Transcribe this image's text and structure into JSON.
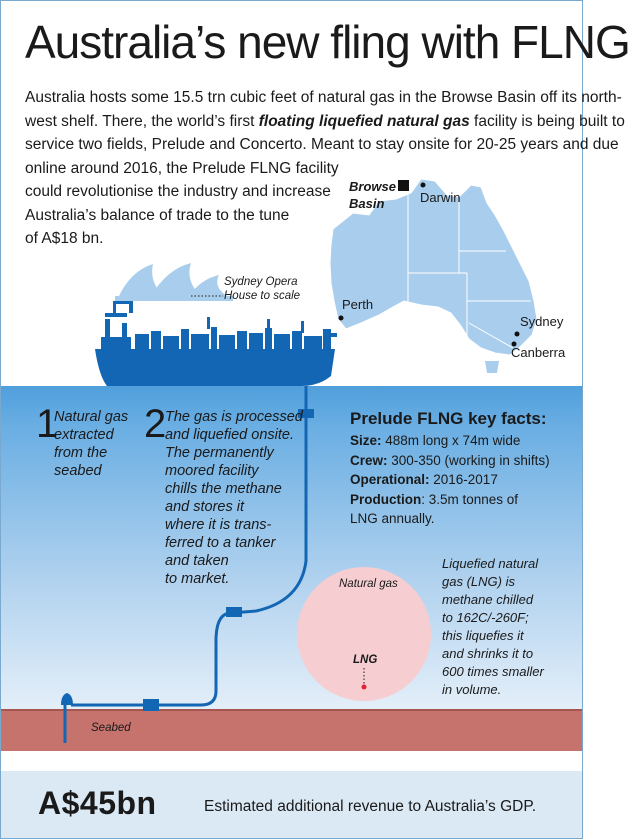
{
  "title": "Australia’s new fling with FLNG",
  "intro": {
    "line1": "Australia hosts some 15.5 trn cubic feet of natural gas in the Browse Basin off its north-",
    "line2_pre": "west shelf. There, the world’s first ",
    "line2_bold": "floating liquefied natural gas",
    "line2_post": " facility is being built to",
    "line3": "service two fields, Prelude and Concerto. Meant to stay onsite for 20-25 years and due",
    "line4": "online around 2016, the Prelude FLNG facility",
    "line5": "could revolutionise the industry and increase",
    "line6": "Australia’s balance of trade to the tune",
    "line7": "of A$18 bn."
  },
  "map": {
    "browse_basin": [
      "Browse",
      "Basin"
    ],
    "cities": {
      "darwin": "Darwin",
      "perth": "Perth",
      "sydney": "Sydney",
      "canberra": "Canberra"
    }
  },
  "opera_label": [
    "Sydney Opera",
    "House to scale"
  ],
  "steps": [
    {
      "number": "1",
      "lines": [
        "Natural gas",
        "extracted",
        "from the",
        "seabed"
      ]
    },
    {
      "number": "2",
      "lines": [
        "The gas is processed",
        "and liquefied onsite.",
        "The permanently",
        "moored facility",
        "chills the methane",
        "and stores it",
        "where it is trans-",
        "ferred to a tanker",
        "and taken",
        "to market."
      ]
    }
  ],
  "facts": {
    "title": "Prelude FLNG key facts:",
    "size_label": "Size:",
    "size_value": " 488m long x 74m wide",
    "crew_label": "Crew:",
    "crew_value": " 300-350 (working in shifts)",
    "operational_label": "Operational:",
    "operational_value": " 2016-2017",
    "production_label": "Production",
    "production_value": ": 3.5m tonnes of",
    "production_value2": "LNG annually."
  },
  "lng": {
    "natural_gas_label": "Natural gas",
    "lng_label": "LNG",
    "note": [
      "Liquefied natural",
      "gas (LNG) is",
      "methane chilled",
      "to 162C/-260F;",
      "this liquefies it",
      "and shrinks it to",
      "600 times smaller",
      "in volume."
    ]
  },
  "seabed_label": "Seabed",
  "footer": {
    "amount": "A$45bn",
    "caption": "Estimated additional revenue to Australia’s GDP."
  },
  "colors": {
    "ship": "#1366b3",
    "sea_top": "#4f9fdc",
    "sea_bottom": "#e4eff9",
    "seabed": "#c5736c",
    "map_fill": "#a9cdec",
    "lng_circle": "#f6cdd1",
    "lng_dot": "#e0233a",
    "footer_bg": "#dbe9f5"
  }
}
